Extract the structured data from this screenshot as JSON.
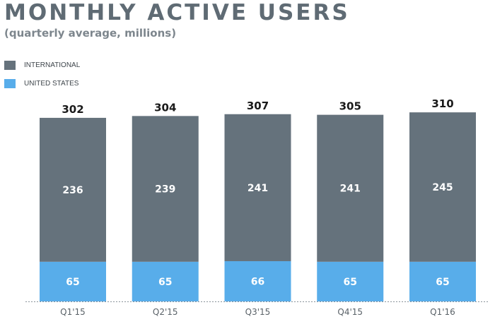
{
  "header": {
    "title": "MONTHLY ACTIVE USERS",
    "subtitle": "(quarterly average, millions)"
  },
  "chart_data": {
    "type": "bar",
    "stacked": true,
    "categories": [
      "Q1'15",
      "Q2'15",
      "Q3'15",
      "Q4'15",
      "Q1'16"
    ],
    "series": [
      {
        "name": "UNITED STATES",
        "values": [
          65,
          65,
          66,
          65,
          65
        ],
        "color": "#58adea"
      },
      {
        "name": "INTERNATIONAL",
        "values": [
          236,
          239,
          241,
          241,
          245
        ],
        "color": "#65727c"
      }
    ],
    "totals": [
      302,
      304,
      307,
      305,
      310
    ],
    "title": "MONTHLY ACTIVE USERS",
    "subtitle": "(quarterly average, millions)",
    "xlabel": "",
    "ylabel": "",
    "ylim": [
      0,
      310
    ],
    "grid": false,
    "legend_position": "top-left"
  },
  "colors": {
    "title": "#5f6b74",
    "subtitle": "#7d868d",
    "international": "#65727c",
    "united_states": "#58adea",
    "label_on_bar": "#ffffff",
    "total_label": "#1a1a1a",
    "axis_tick": "#5a6268"
  }
}
